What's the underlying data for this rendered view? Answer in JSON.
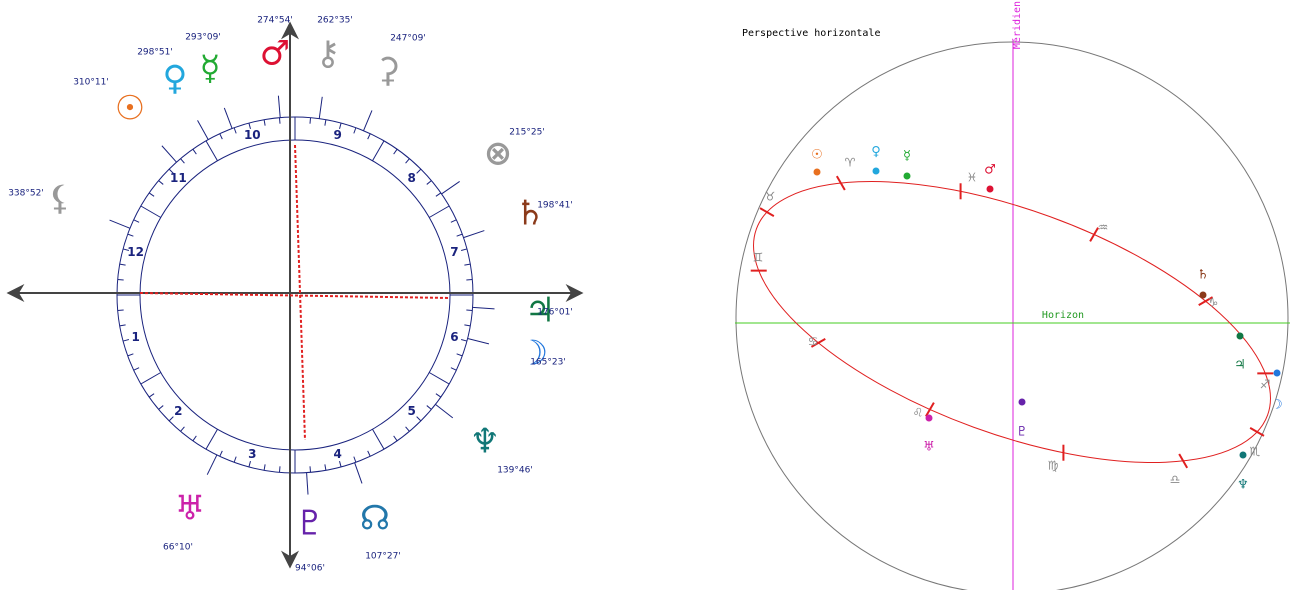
{
  "wheel": {
    "houses": [
      "1",
      "2",
      "3",
      "4",
      "5",
      "6",
      "7",
      "8",
      "9",
      "10",
      "11",
      "12"
    ],
    "planets": [
      {
        "glyph": "☉",
        "degree": "310°11'",
        "color": "#e87020"
      },
      {
        "glyph": "♀",
        "degree": "298°51'",
        "color": "#22a7dd"
      },
      {
        "glyph": "☿",
        "degree": "293°09'",
        "color": "#22aa33"
      },
      {
        "glyph": "♂",
        "degree": "274°54'",
        "color": "#dd1133"
      },
      {
        "glyph": "⚷",
        "degree": "262°35'",
        "color": "#999999"
      },
      {
        "glyph": "⚳",
        "degree": "247°09'",
        "color": "#999999"
      },
      {
        "glyph": "⊗",
        "degree": "215°25'",
        "color": "#999999"
      },
      {
        "glyph": "♄",
        "degree": "198°41'",
        "color": "#8b3a1a"
      },
      {
        "glyph": "♃",
        "degree": "176°01'",
        "color": "#117744"
      },
      {
        "glyph": "☽",
        "degree": "165°23'",
        "color": "#2277dd"
      },
      {
        "glyph": "♆",
        "degree": "139°46'",
        "color": "#117777"
      },
      {
        "glyph": "☊",
        "degree": "107°27'",
        "color": "#2277aa"
      },
      {
        "glyph": "♇",
        "degree": "94°06'",
        "color": "#6622aa"
      },
      {
        "glyph": "♅",
        "degree": "66°10'",
        "color": "#cc22aa"
      },
      {
        "glyph": "⚸",
        "degree": "338°52'",
        "color": "#999999"
      }
    ]
  },
  "perspective": {
    "title": "Perspective horizontale",
    "meridian": "Méridien",
    "horizon": "Horizon",
    "signs": [
      "♈",
      "♉",
      "♊",
      "♋",
      "♌",
      "♍",
      "♎",
      "♏",
      "♐",
      "♑",
      "♒",
      "♓"
    ],
    "planets": [
      {
        "glyph": "☉",
        "color": "#e87020"
      },
      {
        "glyph": "♀",
        "color": "#22a7dd"
      },
      {
        "glyph": "☿",
        "color": "#22aa33"
      },
      {
        "glyph": "♂",
        "color": "#dd1133"
      },
      {
        "glyph": "♄",
        "color": "#8b3a1a"
      },
      {
        "glyph": "♃",
        "color": "#117744"
      },
      {
        "glyph": "☽",
        "color": "#2277dd"
      },
      {
        "glyph": "♆",
        "color": "#117777"
      },
      {
        "glyph": "♅",
        "color": "#cc22aa"
      },
      {
        "glyph": "♇",
        "color": "#6622aa"
      }
    ]
  }
}
